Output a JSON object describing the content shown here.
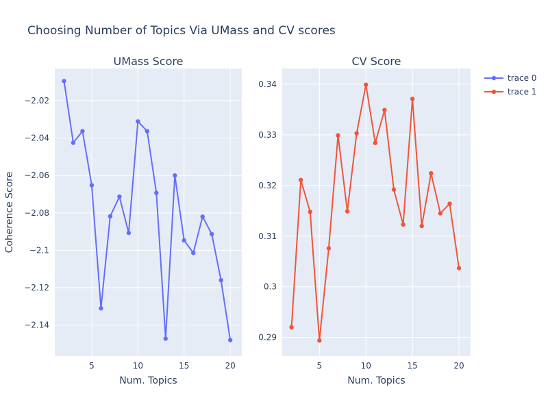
{
  "title": "Choosing Number of Topics Via UMass and CV scores",
  "shared_ylabel": "Coherence Score",
  "colors": {
    "plot_bg": "#E5ECF6",
    "grid": "#FFFFFF",
    "text": "#2A3F5F",
    "trace0": "#636EFA",
    "trace1": "#EF553B"
  },
  "legend": {
    "placement": "top-right",
    "items": [
      {
        "label": "trace 0",
        "color": "#636EFA"
      },
      {
        "label": "trace 1",
        "color": "#EF553B"
      }
    ]
  },
  "chart_data": [
    {
      "type": "line",
      "title": "UMass Score",
      "xlabel": "Num. Topics",
      "ylabel": "Coherence Score",
      "series_name": "trace 0",
      "color": "#636EFA",
      "x": [
        2,
        3,
        4,
        5,
        6,
        7,
        8,
        9,
        10,
        11,
        12,
        13,
        14,
        15,
        16,
        17,
        18,
        19,
        20
      ],
      "y": [
        -2.0095,
        -2.0425,
        -2.0363,
        -2.0652,
        -2.131,
        -2.0818,
        -2.0713,
        -2.0907,
        -2.0311,
        -2.0363,
        -2.0693,
        -2.1472,
        -2.06,
        -2.0947,
        -2.1014,
        -2.082,
        -2.0913,
        -2.116,
        -2.148
      ],
      "xlim": [
        1,
        21.25
      ],
      "ylim": [
        -2.1566,
        -2.0028
      ],
      "xticks": [
        5,
        10,
        15,
        20
      ],
      "xtick_labels": [
        "5",
        "10",
        "15",
        "20"
      ],
      "yticks": [
        -2.02,
        -2.04,
        -2.06,
        -2.08,
        -2.1,
        -2.12,
        -2.14
      ],
      "ytick_labels": [
        "−2.02",
        "−2.04",
        "−2.06",
        "−2.08",
        "−2.1",
        "−2.12",
        "−2.14"
      ],
      "grid": true
    },
    {
      "type": "line",
      "title": "CV Score",
      "xlabel": "Num. Topics",
      "ylabel": "",
      "series_name": "trace 1",
      "color": "#EF553B",
      "x": [
        2,
        3,
        4,
        5,
        6,
        7,
        8,
        9,
        10,
        11,
        12,
        13,
        14,
        15,
        16,
        17,
        18,
        19,
        20
      ],
      "y": [
        0.292,
        0.3211,
        0.3148,
        0.2894,
        0.3076,
        0.3299,
        0.3149,
        0.3303,
        0.3399,
        0.3284,
        0.3349,
        0.3192,
        0.3123,
        0.3371,
        0.312,
        0.3224,
        0.3145,
        0.3164,
        0.3037
      ],
      "xlim": [
        1,
        21.25
      ],
      "ylim": [
        0.2863,
        0.3431
      ],
      "xticks": [
        5,
        10,
        15,
        20
      ],
      "xtick_labels": [
        "5",
        "10",
        "15",
        "20"
      ],
      "yticks": [
        0.29,
        0.3,
        0.31,
        0.32,
        0.33,
        0.34
      ],
      "ytick_labels": [
        "0.29",
        "0.3",
        "0.31",
        "0.32",
        "0.33",
        "0.34"
      ],
      "grid": true
    }
  ]
}
